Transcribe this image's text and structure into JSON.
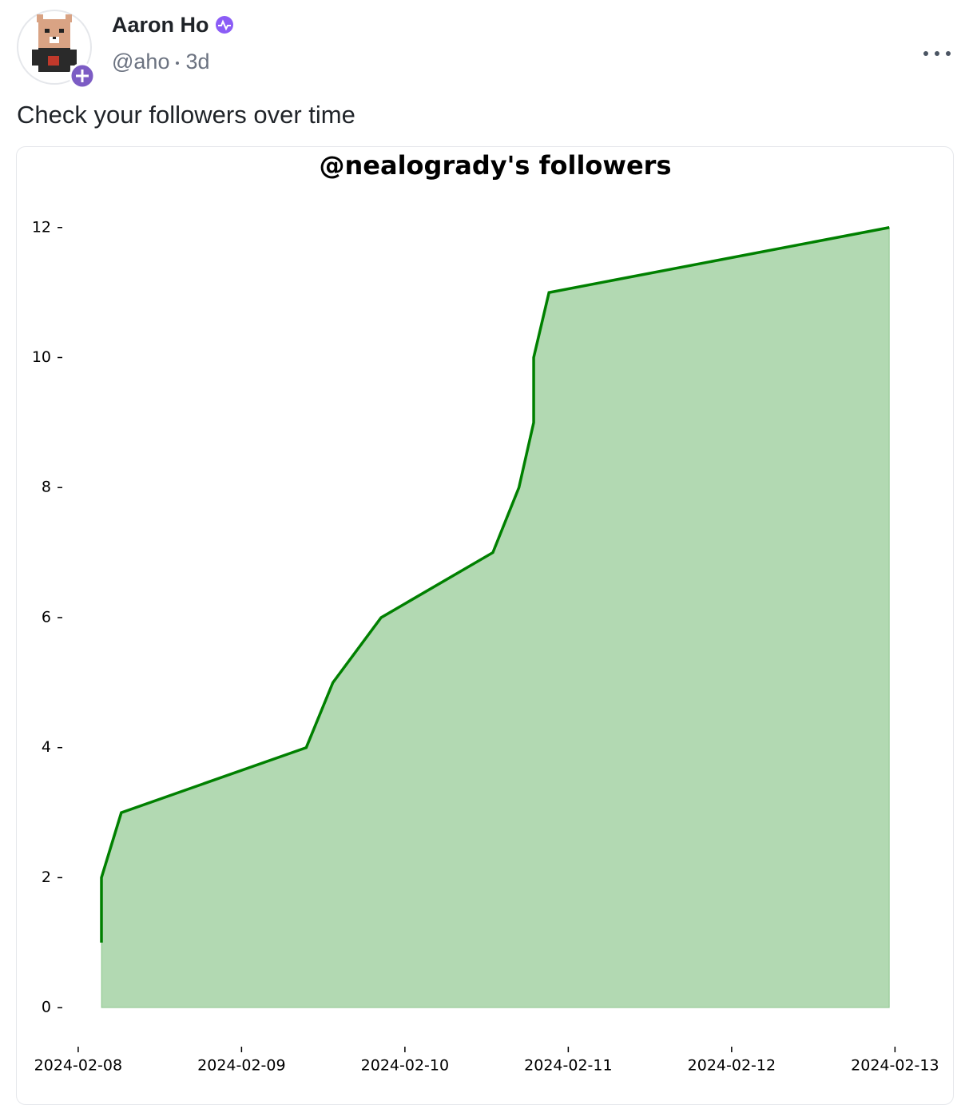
{
  "post": {
    "author": "Aaron Ho",
    "handle": "@aho",
    "time": "3d",
    "text": "Check your followers over time"
  },
  "chart_data": {
    "type": "area",
    "title": "@nealogrady's followers",
    "x": [
      "2024-02-08T03:25",
      "2024-02-08T03:25",
      "2024-02-08T06:20",
      "2024-02-09T09:30",
      "2024-02-09T13:25",
      "2024-02-09T20:30",
      "2024-02-10T12:55",
      "2024-02-10T16:45",
      "2024-02-10T18:55",
      "2024-02-10T18:55",
      "2024-02-10T21:10",
      "2024-02-12T23:10"
    ],
    "values": [
      1,
      2,
      3,
      4,
      5,
      6,
      7,
      8,
      9,
      10,
      11,
      12
    ],
    "color": "#008000",
    "xlim": [
      "2024-02-07T21:40",
      "2024-02-13T07:00"
    ],
    "xticks": [
      "2024-02-08",
      "2024-02-09",
      "2024-02-10",
      "2024-02-11",
      "2024-02-12",
      "2024-02-13"
    ],
    "ylim": [
      -0.6,
      12.55
    ],
    "yticks": [
      0,
      2,
      4,
      6,
      8,
      10,
      12
    ],
    "grid": false
  }
}
